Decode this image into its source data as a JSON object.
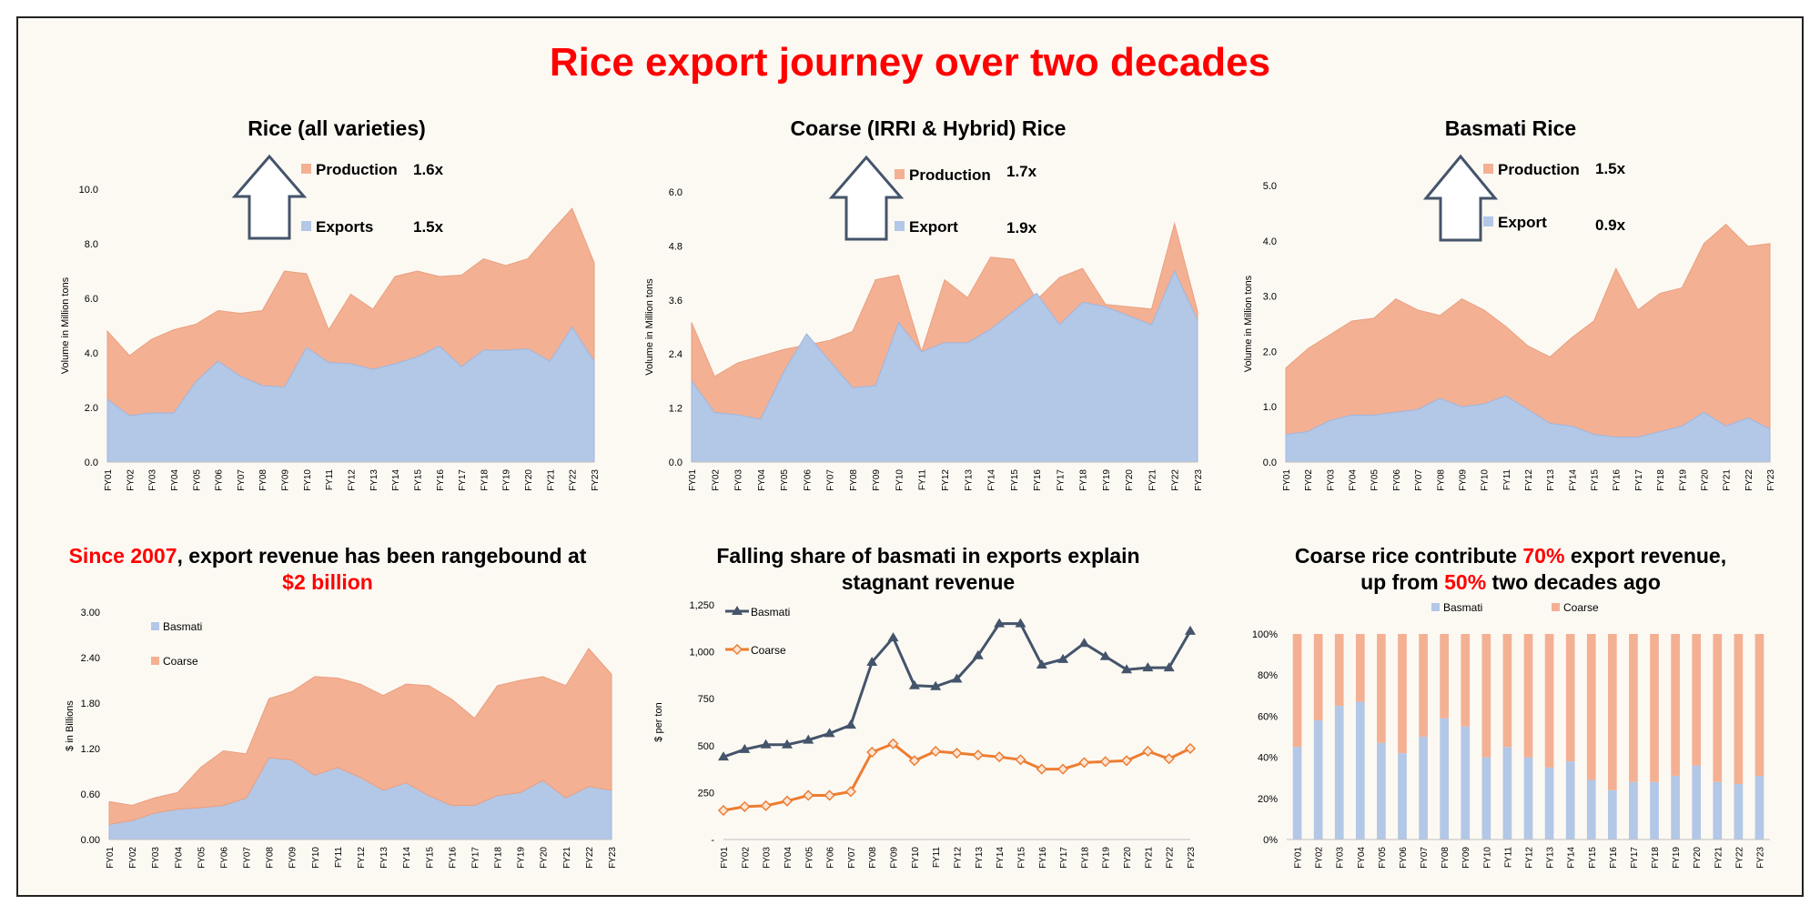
{
  "page": {
    "title": "Rice export journey over two decades",
    "colors": {
      "production": "#f4b093",
      "exports": "#b3c7e7",
      "basmati_line": "#44546a",
      "coarse_line": "#ed7d31",
      "title_red": "#ff0000"
    }
  },
  "panels": {
    "p1": {
      "title": "Rice (all varieties)",
      "legend": [
        {
          "label": "Production",
          "factor": "1.6x"
        },
        {
          "label": "Exports",
          "factor": "1.5x"
        }
      ],
      "ylabel": "Volume in Million tons"
    },
    "p2": {
      "title": "Coarse (IRRI & Hybrid) Rice",
      "legend": [
        {
          "label": "Production",
          "factor": "1.7x"
        },
        {
          "label": "Export",
          "factor": "1.9x"
        }
      ],
      "ylabel": "Volume in Million tons"
    },
    "p3": {
      "title": "Basmati Rice",
      "legend": [
        {
          "label": "Production",
          "factor": "1.5x"
        },
        {
          "label": "Export",
          "factor": "0.9x"
        }
      ],
      "ylabel": "Volume in Million tons"
    },
    "p4": {
      "title_parts": {
        "hl1": "Since 2007",
        "t1": ", export revenue has been rangebound at",
        "hl2": "$2 billion"
      },
      "legend": [
        "Basmati",
        "Coarse"
      ],
      "ylabel": "$ in Billions"
    },
    "p5": {
      "title_line1": "Falling share of basmati in exports explain",
      "title_line2": "stagnant revenue",
      "legend": [
        "Basmati",
        "Coarse"
      ],
      "ylabel": "$ per ton"
    },
    "p6": {
      "title_parts": {
        "t1": "Coarse rice contribute ",
        "hl1": "70%",
        "t2": " export revenue,",
        "t3": "up from ",
        "hl2": "50%",
        "t4": " two decades ago"
      },
      "legend": [
        "Basmati",
        "Coarse"
      ]
    }
  },
  "chart_data": [
    {
      "id": "p1",
      "type": "area",
      "stacked": false,
      "x": [
        "FY01",
        "FY02",
        "FY03",
        "FY04",
        "FY05",
        "FY06",
        "FY07",
        "FY08",
        "FY09",
        "FY10",
        "FY11",
        "FY12",
        "FY13",
        "FY14",
        "FY15",
        "FY16",
        "FY17",
        "FY18",
        "FY19",
        "FY20",
        "FY21",
        "FY22",
        "FY23"
      ],
      "series": [
        {
          "name": "Production",
          "values": [
            4.8,
            3.9,
            4.5,
            4.85,
            5.05,
            5.55,
            5.45,
            5.55,
            7.0,
            6.9,
            4.85,
            6.15,
            5.6,
            6.8,
            7.0,
            6.8,
            6.85,
            7.45,
            7.2,
            7.45,
            8.4,
            9.3,
            7.3
          ]
        },
        {
          "name": "Exports",
          "values": [
            2.3,
            1.7,
            1.8,
            1.8,
            2.95,
            3.7,
            3.15,
            2.8,
            2.75,
            4.2,
            3.65,
            3.6,
            3.4,
            3.6,
            3.85,
            4.25,
            3.5,
            4.1,
            4.1,
            4.15,
            3.7,
            4.95,
            3.7
          ]
        }
      ],
      "ylim": [
        0,
        10
      ],
      "yticks": [
        "0.0",
        "2.0",
        "4.0",
        "6.0",
        "8.0",
        "10.0"
      ],
      "ylabel": "Volume in Million tons"
    },
    {
      "id": "p2",
      "type": "area",
      "stacked": false,
      "x": [
        "FY01",
        "FY02",
        "FY03",
        "FY04",
        "FY05",
        "FY06",
        "FY07",
        "FY08",
        "FY09",
        "FY10",
        "FY11",
        "FY12",
        "FY13",
        "FY14",
        "FY15",
        "FY16",
        "FY17",
        "FY18",
        "FY19",
        "FY20",
        "FY21",
        "FY22",
        "FY23"
      ],
      "series": [
        {
          "name": "Production",
          "values": [
            3.1,
            1.9,
            2.2,
            2.35,
            2.5,
            2.6,
            2.7,
            2.9,
            4.05,
            4.15,
            2.45,
            4.05,
            3.65,
            4.55,
            4.5,
            3.6,
            4.1,
            4.3,
            3.5,
            3.45,
            3.4,
            5.3,
            3.35
          ]
        },
        {
          "name": "Export",
          "values": [
            1.8,
            1.1,
            1.05,
            0.95,
            2.0,
            2.85,
            2.25,
            1.65,
            1.7,
            3.1,
            2.45,
            2.65,
            2.65,
            2.95,
            3.35,
            3.75,
            3.05,
            3.55,
            3.45,
            3.25,
            3.05,
            4.25,
            3.15
          ]
        }
      ],
      "ylim": [
        0,
        6
      ],
      "yticks": [
        "0.0",
        "1.2",
        "2.4",
        "3.6",
        "4.8",
        "6.0"
      ],
      "ylabel": "Volume in Million tons"
    },
    {
      "id": "p3",
      "type": "area",
      "stacked": false,
      "x": [
        "FY01",
        "FY02",
        "FY03",
        "FY04",
        "FY05",
        "FY06",
        "FY07",
        "FY08",
        "FY09",
        "FY10",
        "FY11",
        "FY12",
        "FY13",
        "FY14",
        "FY15",
        "FY16",
        "FY17",
        "FY18",
        "FY19",
        "FY20",
        "FY21",
        "FY22",
        "FY23"
      ],
      "series": [
        {
          "name": "Production",
          "values": [
            1.7,
            2.05,
            2.3,
            2.55,
            2.6,
            2.95,
            2.75,
            2.65,
            2.95,
            2.75,
            2.45,
            2.1,
            1.9,
            2.25,
            2.55,
            3.5,
            2.75,
            3.05,
            3.15,
            3.95,
            4.3,
            3.9,
            3.95
          ]
        },
        {
          "name": "Export",
          "values": [
            0.5,
            0.55,
            0.75,
            0.85,
            0.85,
            0.9,
            0.95,
            1.15,
            1.0,
            1.05,
            1.2,
            0.95,
            0.7,
            0.65,
            0.5,
            0.45,
            0.45,
            0.55,
            0.65,
            0.9,
            0.65,
            0.8,
            0.6
          ]
        }
      ],
      "ylim": [
        0,
        5
      ],
      "yticks": [
        "0.0",
        "1.0",
        "2.0",
        "3.0",
        "4.0",
        "5.0"
      ],
      "ylabel": "Volume in Million tons"
    },
    {
      "id": "p4",
      "type": "area",
      "stacked": true,
      "x": [
        "FY01",
        "FY02",
        "FY03",
        "FY04",
        "FY05",
        "FY06",
        "FY07",
        "FY08",
        "FY09",
        "FY10",
        "FY11",
        "FY12",
        "FY13",
        "FY14",
        "FY15",
        "FY16",
        "FY17",
        "FY18",
        "FY19",
        "FY20",
        "FY21",
        "FY22",
        "FY23"
      ],
      "series": [
        {
          "name": "Basmati",
          "values": [
            0.2,
            0.25,
            0.35,
            0.4,
            0.42,
            0.45,
            0.55,
            1.08,
            1.05,
            0.85,
            0.95,
            0.82,
            0.65,
            0.75,
            0.58,
            0.45,
            0.45,
            0.58,
            0.62,
            0.78,
            0.55,
            0.7,
            0.65
          ]
        },
        {
          "name": "Coarse",
          "values": [
            0.3,
            0.2,
            0.2,
            0.22,
            0.53,
            0.72,
            0.58,
            0.78,
            0.9,
            1.3,
            1.18,
            1.23,
            1.25,
            1.3,
            1.45,
            1.4,
            1.15,
            1.45,
            1.48,
            1.37,
            1.48,
            1.82,
            1.53
          ]
        }
      ],
      "ylim": [
        0,
        3.0
      ],
      "yticks": [
        "0.00",
        "0.60",
        "1.20",
        "1.80",
        "2.40",
        "3.00"
      ],
      "ylabel": "$ in Billions"
    },
    {
      "id": "p5",
      "type": "line",
      "x": [
        "FY01",
        "FY02",
        "FY03",
        "FY04",
        "FY05",
        "FY06",
        "FY07",
        "FY08",
        "FY09",
        "FY10",
        "FY11",
        "FY12",
        "FY13",
        "FY14",
        "FY15",
        "FY16",
        "FY17",
        "FY18",
        "FY19",
        "FY20",
        "FY21",
        "FY22",
        "FY23"
      ],
      "series": [
        {
          "name": "Basmati",
          "values": [
            440,
            480,
            505,
            505,
            530,
            565,
            610,
            945,
            1075,
            820,
            815,
            855,
            980,
            1150,
            1150,
            930,
            960,
            1045,
            975,
            905,
            915,
            915,
            1110
          ]
        },
        {
          "name": "Coarse",
          "values": [
            155,
            175,
            180,
            205,
            235,
            235,
            255,
            465,
            510,
            420,
            470,
            460,
            450,
            440,
            425,
            375,
            375,
            410,
            415,
            420,
            470,
            430,
            485
          ]
        }
      ],
      "ylim": [
        0,
        1250
      ],
      "yticks": [
        "-",
        "250",
        "500",
        "750",
        "1,000",
        "1,250"
      ],
      "ylabel": "$ per ton"
    },
    {
      "id": "p6",
      "type": "bar",
      "stacked": true,
      "percent": true,
      "x": [
        "FY01",
        "FY02",
        "FY03",
        "FY04",
        "FY05",
        "FY06",
        "FY07",
        "FY08",
        "FY09",
        "FY10",
        "FY11",
        "FY12",
        "FY13",
        "FY14",
        "FY15",
        "FY16",
        "FY17",
        "FY18",
        "FY19",
        "FY20",
        "FY21",
        "FY22",
        "FY23"
      ],
      "series": [
        {
          "name": "Basmati",
          "values": [
            45,
            58,
            65,
            67,
            47,
            42,
            50,
            59,
            55,
            40,
            45,
            40,
            35,
            38,
            29,
            24,
            28,
            28,
            31,
            36,
            28,
            27,
            31
          ]
        },
        {
          "name": "Coarse",
          "values": [
            55,
            42,
            35,
            33,
            53,
            58,
            50,
            41,
            45,
            60,
            55,
            60,
            65,
            62,
            71,
            76,
            72,
            72,
            69,
            64,
            72,
            73,
            69
          ]
        }
      ],
      "ylim": [
        0,
        100
      ],
      "yticks": [
        "0%",
        "20%",
        "40%",
        "60%",
        "80%",
        "100%"
      ]
    }
  ]
}
